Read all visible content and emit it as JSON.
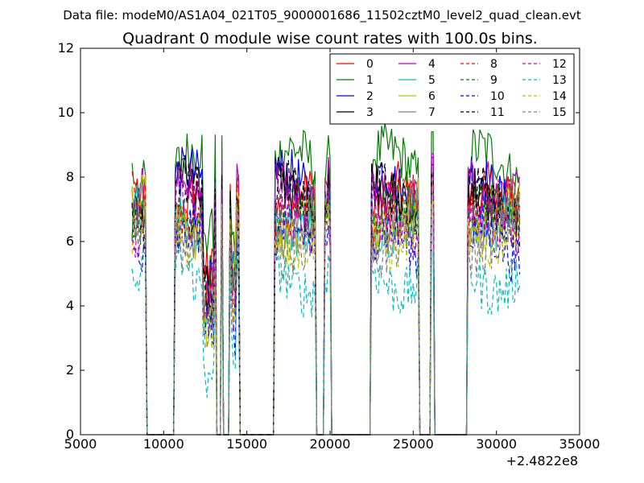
{
  "header": {
    "data_file": "Data file: modeM0/AS1A04_021T05_9000001686_11502cztM0_level2_quad_clean.evt"
  },
  "chart_data": {
    "type": "line",
    "title": "Quadrant 0 module wise count rates with 100.0s bins.",
    "xlabel": "",
    "ylabel": "",
    "x_offset_label": "+2.4822e8",
    "xlim": [
      5000,
      35000
    ],
    "ylim": [
      0,
      12
    ],
    "xticks": [
      5000,
      10000,
      15000,
      20000,
      25000,
      30000,
      35000
    ],
    "xtick_labels": [
      "5000",
      "10000",
      "15000",
      "20000",
      "25000",
      "30000",
      "35000"
    ],
    "yticks": [
      0,
      2,
      4,
      6,
      8,
      10,
      12
    ],
    "ytick_labels": [
      "0",
      "2",
      "4",
      "6",
      "8",
      "10",
      "12"
    ],
    "grid": false,
    "legend_position": "top-right",
    "legend_columns": 4,
    "bin_seconds": 100,
    "x_start": 8100,
    "x_end": 31400,
    "gaps": [
      [
        8900,
        10700
      ],
      [
        13100,
        13450
      ],
      [
        13550,
        14000
      ],
      [
        14500,
        16700
      ],
      [
        19100,
        19700
      ],
      [
        20000,
        22500
      ],
      [
        25300,
        26050
      ],
      [
        26200,
        28300
      ]
    ],
    "spikes": [
      [
        13500,
        8.4
      ],
      [
        19900,
        8.4
      ],
      [
        26150,
        8.5
      ]
    ],
    "series": [
      {
        "name": "0",
        "mean": 7.1,
        "color": "#ff0000",
        "dash": "solid"
      },
      {
        "name": "1",
        "mean": 8.3,
        "color": "#008000",
        "dash": "solid"
      },
      {
        "name": "2",
        "mean": 7.6,
        "color": "#0000ff",
        "dash": "solid"
      },
      {
        "name": "3",
        "mean": 7.4,
        "color": "#000000",
        "dash": "solid"
      },
      {
        "name": "4",
        "mean": 7.7,
        "color": "#bf00bf",
        "dash": "solid"
      },
      {
        "name": "5",
        "mean": 6.9,
        "color": "#00bfbf",
        "dash": "solid"
      },
      {
        "name": "6",
        "mean": 6.8,
        "color": "#bfbf00",
        "dash": "solid"
      },
      {
        "name": "7",
        "mean": 6.6,
        "color": "#808080",
        "dash": "solid"
      },
      {
        "name": "8",
        "mean": 6.9,
        "color": "#ff0000",
        "dash": "dashed"
      },
      {
        "name": "9",
        "mean": 6.7,
        "color": "#008000",
        "dash": "dashed"
      },
      {
        "name": "10",
        "mean": 5.8,
        "color": "#0000ff",
        "dash": "dashed"
      },
      {
        "name": "11",
        "mean": 7.2,
        "color": "#000000",
        "dash": "dashed"
      },
      {
        "name": "12",
        "mean": 6.8,
        "color": "#bf00bf",
        "dash": "dashed"
      },
      {
        "name": "13",
        "mean": 5.0,
        "color": "#00bfbf",
        "dash": "dashed"
      },
      {
        "name": "14",
        "mean": 6.4,
        "color": "#bfbf00",
        "dash": "dashed"
      },
      {
        "name": "15",
        "mean": 6.2,
        "color": "#808080",
        "dash": "dashed"
      }
    ]
  }
}
